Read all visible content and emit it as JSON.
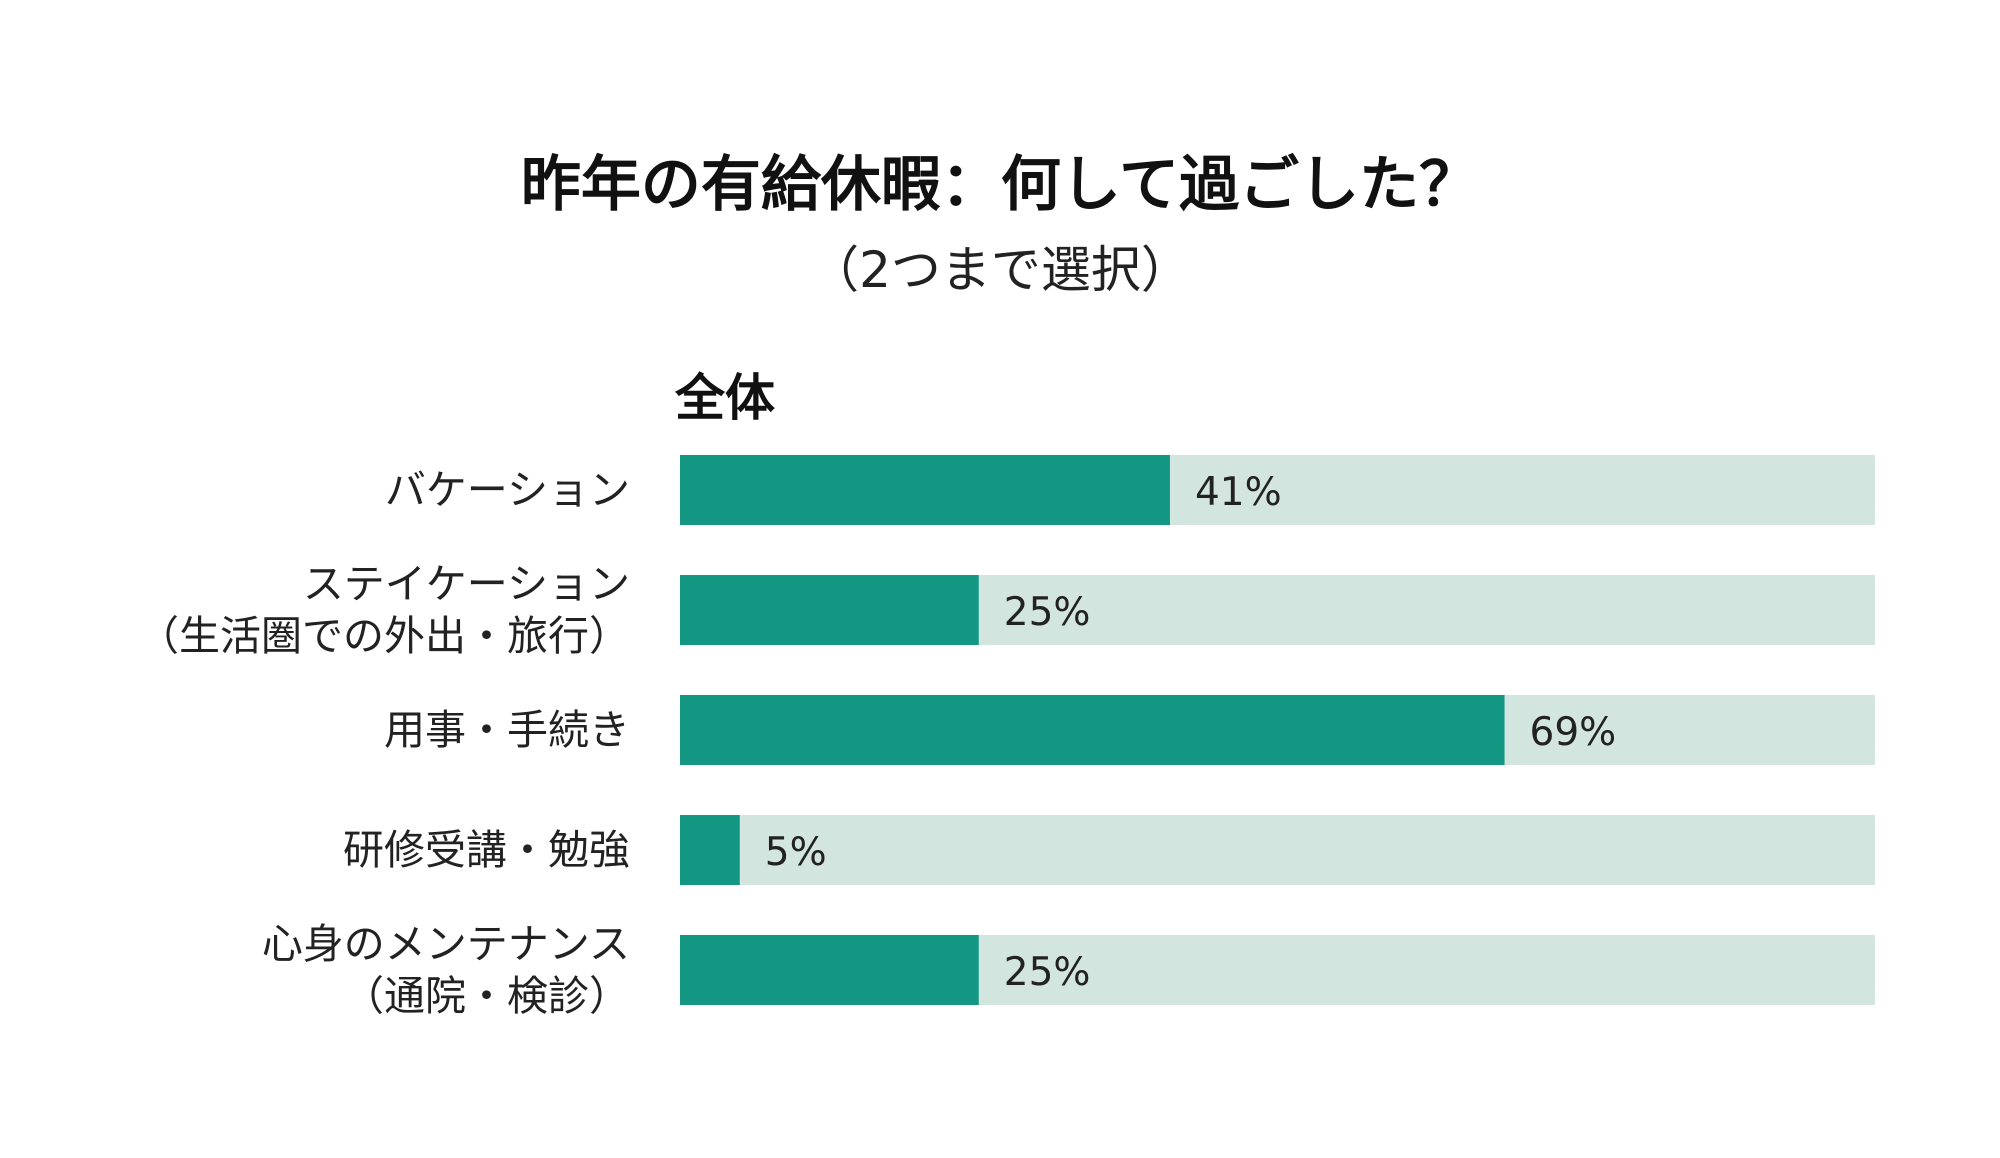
{
  "chart_data": {
    "type": "bar",
    "orientation": "horizontal",
    "title": "昨年の有給休暇：何して過ごした？",
    "subtitle": "（2つまで選択）",
    "group_label": "全体",
    "categories": [
      [
        "バケーション"
      ],
      [
        "ステイケーション",
        "（生活圏での外出・旅行）"
      ],
      [
        "用事・手続き"
      ],
      [
        "研修受講・勉強"
      ],
      [
        "心身のメンテナンス",
        "（通院・検診）"
      ]
    ],
    "series": [
      {
        "values": [
          41,
          25,
          69,
          5,
          25
        ]
      }
    ],
    "value_labels": [
      "41%",
      "25%",
      "69%",
      "5%",
      "25%"
    ],
    "unit": "%",
    "xlim": [
      0,
      100
    ],
    "grid": false,
    "legend": "none",
    "colors": {
      "bar": "#139783",
      "track": "#d3e5df"
    }
  }
}
